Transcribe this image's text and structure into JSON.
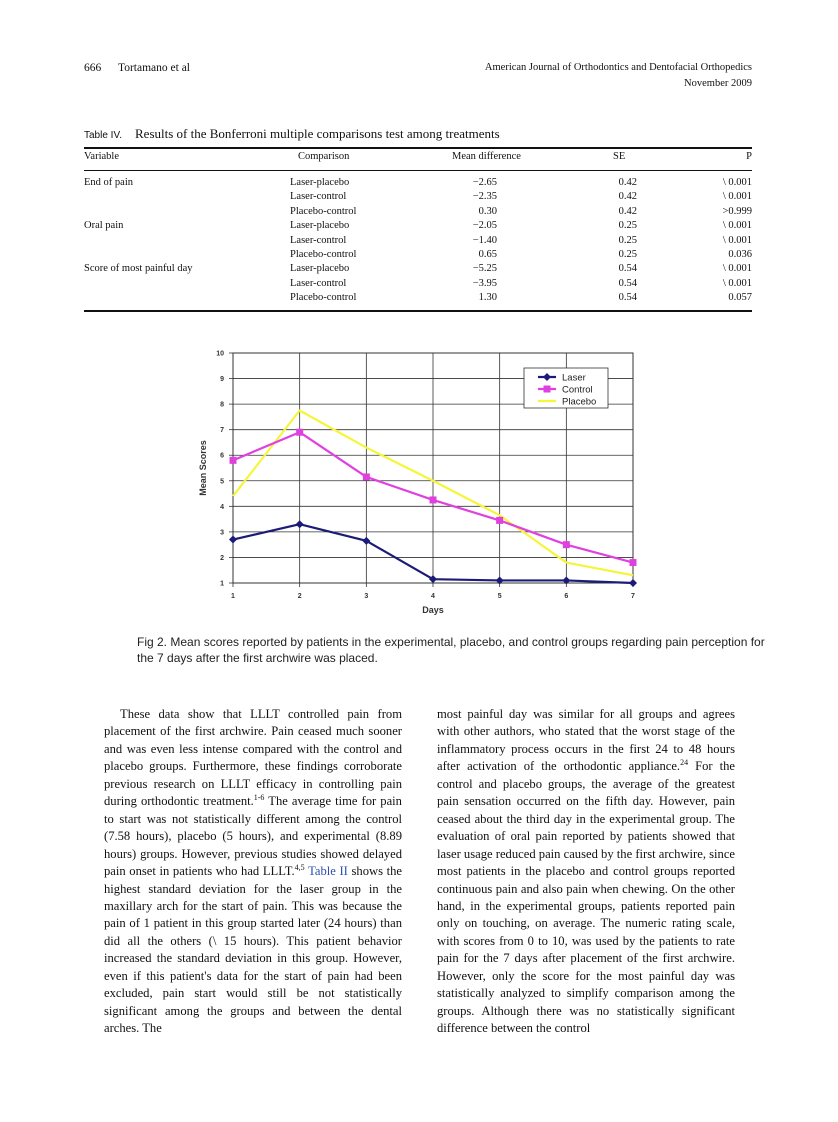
{
  "header": {
    "page_number": "666",
    "author": "Tortamano et al",
    "journal": "American Journal of Orthodontics and Dentofacial Orthopedics",
    "date": "November 2009"
  },
  "table": {
    "label": "Table IV.",
    "title": "Results of the Bonferroni multiple comparisons test among treatments",
    "columns": [
      "Variable",
      "Comparison",
      "Mean difference",
      "SE",
      "P"
    ],
    "rows": [
      {
        "variable": "End of pain",
        "comparison": "Laser-placebo",
        "mean_difference": "−2.65",
        "se": "0.42",
        "p": "\\ 0.001"
      },
      {
        "comparison": "Laser-control",
        "mean_difference": "−2.35",
        "se": "0.42",
        "p": "\\ 0.001"
      },
      {
        "comparison": "Placebo-control",
        "mean_difference": "0.30",
        "se": "0.42",
        "p": ">0.999"
      },
      {
        "variable": "Oral pain",
        "comparison": "Laser-placebo",
        "mean_difference": "−2.05",
        "se": "0.25",
        "p": "\\ 0.001"
      },
      {
        "comparison": "Laser-control",
        "mean_difference": "−1.40",
        "se": "0.25",
        "p": "\\ 0.001"
      },
      {
        "comparison": "Placebo-control",
        "mean_difference": "0.65",
        "se": "0.25",
        "p": "0.036"
      },
      {
        "variable": "Score of most painful day",
        "comparison": "Laser-placebo",
        "mean_difference": "−5.25",
        "se": "0.54",
        "p": "\\ 0.001"
      },
      {
        "comparison": "Laser-control",
        "mean_difference": "−3.95",
        "se": "0.54",
        "p": "\\ 0.001"
      },
      {
        "comparison": "Placebo-control",
        "mean_difference": "1.30",
        "se": "0.54",
        "p": "0.057"
      }
    ]
  },
  "chart_data": {
    "type": "line",
    "x_label": "Days",
    "y_label": "Mean Scores",
    "x": [
      1,
      2,
      3,
      4,
      5,
      6,
      7
    ],
    "xlim": [
      1,
      7
    ],
    "xticks": [
      1,
      2,
      3,
      4,
      5,
      6,
      7
    ],
    "ylim": [
      1,
      10
    ],
    "yticks": [
      1,
      2,
      3,
      4,
      5,
      6,
      7,
      8,
      9,
      10
    ],
    "grid": true,
    "legend": "upper right",
    "series": [
      {
        "name": "Laser",
        "color": "#1c1c78",
        "marker": "diamond",
        "values": [
          2.7,
          3.3,
          2.65,
          1.15,
          1.1,
          1.1,
          1.0
        ]
      },
      {
        "name": "Control",
        "color": "#e040e0",
        "marker": "square",
        "values": [
          5.8,
          6.9,
          5.15,
          4.25,
          3.45,
          2.5,
          1.8
        ]
      },
      {
        "name": "Placebo",
        "color": "#f5f53a",
        "marker": "none",
        "values": [
          4.4,
          7.75,
          6.3,
          5.0,
          3.65,
          1.8,
          1.3
        ]
      }
    ]
  },
  "figure_caption": {
    "label": "Fig 2.",
    "text": "Mean scores reported by patients in the experimental, placebo, and control groups regarding pain perception for the 7 days after the first archwire was placed."
  },
  "body": {
    "columns": [
      [
        {
          "text": "These data show that LLLT controlled pain from placement of the first archwire. Pain ceased much sooner and was even less intense compared with the control and placebo groups. Furthermore, these findings corroborate previous research on LLLT efficacy in controlling pain during orthodontic treatment."
        },
        {
          "sup": "1-6"
        },
        {
          "text": " The average time for pain to start was not statistically different among the control (7.58 hours), placebo (5 hours), and experimental (8.89 hours) groups. However, previous studies showed delayed pain onset in patients who had LLLT."
        },
        {
          "sup": "4,5"
        },
        {
          "link": " Table II"
        },
        {
          "text": " shows the highest standard deviation for the laser group in the maxillary arch for the start of pain. This was because the pain of 1 patient in this group started later (24 hours) than did all the others (\\ 15 hours). This patient behavior increased the standard deviation in this group. However, even if this patient's data for the start of pain had been excluded, pain start would still be not statistically significant among the groups and between the dental arches. The"
        }
      ],
      [
        {
          "text": "most painful day was similar for all groups and agrees with other authors, who stated that the worst stage of the inflammatory process occurs in the first 24 to 48 hours after activation of the orthodontic appliance."
        },
        {
          "sup": "24"
        },
        {
          "text": " For the control and placebo groups, the average of the greatest pain sensation occurred on the fifth day. However, pain ceased about the third day in the experimental group. The evaluation of oral pain reported by patients showed that laser usage reduced pain caused by the first archwire, since most patients in the placebo and control groups reported continuous pain and also pain when chewing. On the other hand, in the experimental groups, patients reported pain only on touching, on average. The numeric rating scale, with scores from 0 to 10, was used by the patients to rate pain for the 7 days after placement of the first archwire. However, only the score for the most painful day was statistically analyzed to simplify comparison among the groups. Although there was no statistically significant difference between the control"
        }
      ]
    ]
  }
}
